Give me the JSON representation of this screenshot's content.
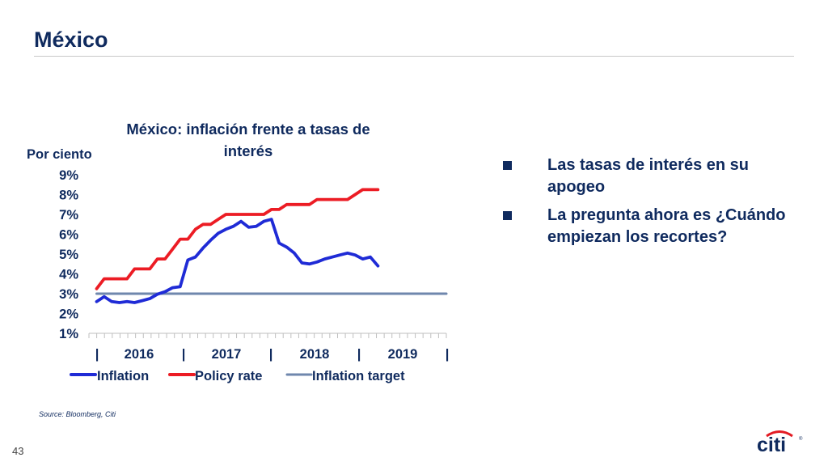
{
  "slide": {
    "title": "México",
    "page_number": "43",
    "source": "Source: Bloomberg, Citi",
    "logo_text": "citi"
  },
  "bullets": [
    "Las tasas de interés en su apogeo",
    "La pregunta ahora es ¿Cuándo empiezan los recortes?"
  ],
  "colors": {
    "navy": "#0f2a5e",
    "inflation": "#1f2bd6",
    "policy_rate": "#ec1c24",
    "inflation_target": "#6f87ad",
    "logo_red": "#e31b23"
  },
  "icons": {
    "bullet": "square-bullet-icon",
    "logo": "citi-logo-icon"
  },
  "chart_data": {
    "type": "line",
    "title": "México: inflación frente a tasas de interés",
    "title_lines": [
      "México: inflación frente a tasas de",
      "interés"
    ],
    "ylabel": "Por ciento",
    "ylim": [
      1,
      9
    ],
    "yticks": [
      "9%",
      "8%",
      "7%",
      "6%",
      "5%",
      "4%",
      "3%",
      "2%",
      "1%"
    ],
    "xlim": [
      2015.583,
      2019.5
    ],
    "x_axis_labels": [
      "|",
      "2016",
      "|",
      "2017",
      "|",
      "2018",
      "|",
      "2019",
      "|"
    ],
    "legend_position": "bottom",
    "series": [
      {
        "name": "Inflation",
        "x": [
          2015.667,
          2015.75,
          2015.833,
          2015.917,
          2016.0,
          2016.083,
          2016.167,
          2016.25,
          2016.333,
          2016.417,
          2016.5,
          2016.583,
          2016.667,
          2016.75,
          2016.833,
          2016.917,
          2017.0,
          2017.083,
          2017.167,
          2017.25,
          2017.333,
          2017.417,
          2017.5,
          2017.583,
          2017.667,
          2017.75,
          2017.833,
          2017.917,
          2018.0,
          2018.083,
          2018.167,
          2018.25,
          2018.333,
          2018.417,
          2018.5,
          2018.583,
          2018.667,
          2018.75,
          2018.833,
          2018.917
        ],
        "values": [
          2.6,
          2.85,
          2.6,
          2.55,
          2.6,
          2.55,
          2.65,
          2.75,
          2.97,
          3.1,
          3.3,
          3.35,
          4.7,
          4.85,
          5.3,
          5.7,
          6.05,
          6.25,
          6.4,
          6.65,
          6.35,
          6.4,
          6.65,
          6.75,
          5.55,
          5.35,
          5.05,
          4.55,
          4.5,
          4.6,
          4.75,
          4.85,
          4.95,
          5.05,
          4.95,
          4.75,
          4.85,
          4.4,
          null,
          null
        ]
      },
      {
        "name": "Policy rate",
        "x": [
          2015.667,
          2015.75,
          2015.833,
          2015.917,
          2016.0,
          2016.083,
          2016.167,
          2016.25,
          2016.333,
          2016.417,
          2016.5,
          2016.583,
          2016.667,
          2016.75,
          2016.833,
          2016.917,
          2017.0,
          2017.083,
          2017.167,
          2017.25,
          2017.333,
          2017.417,
          2017.5,
          2017.583,
          2017.667,
          2017.75,
          2017.833,
          2017.917,
          2018.0,
          2018.083,
          2018.167,
          2018.25,
          2018.333,
          2018.417,
          2018.5,
          2018.583,
          2018.667,
          2018.75,
          2018.833,
          2018.917
        ],
        "values": [
          3.25,
          3.75,
          3.75,
          3.75,
          3.75,
          4.25,
          4.25,
          4.25,
          4.75,
          4.75,
          5.25,
          5.75,
          5.75,
          6.25,
          6.5,
          6.5,
          6.75,
          7.0,
          7.0,
          7.0,
          7.0,
          7.0,
          7.0,
          7.25,
          7.25,
          7.5,
          7.5,
          7.5,
          7.5,
          7.75,
          7.75,
          7.75,
          7.75,
          7.75,
          8.0,
          8.25,
          8.25,
          8.25,
          null,
          null
        ]
      },
      {
        "name": "Inflation target",
        "x": [
          2015.667,
          2019.5
        ],
        "values": [
          3.0,
          3.0
        ]
      }
    ]
  }
}
